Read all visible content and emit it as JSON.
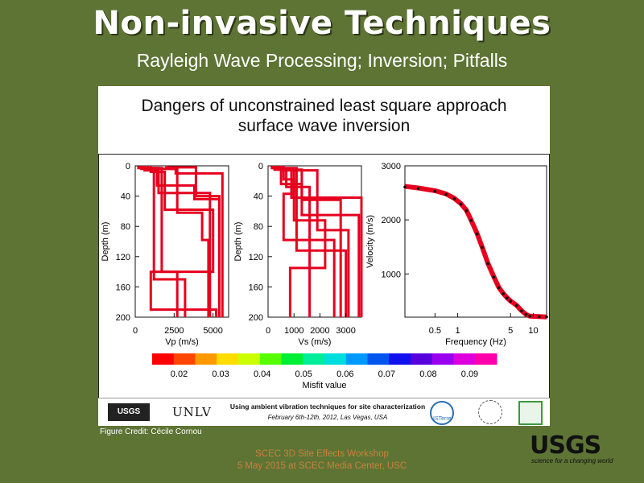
{
  "slide": {
    "title": "Non-invasive Techniques",
    "subtitle": "Rayleigh Wave Processing; Inversion; Pitfalls"
  },
  "panel": {
    "title_line1": "Dangers of unconstrained least square approach",
    "title_line2": "surface wave inversion"
  },
  "chart_data": [
    {
      "type": "line",
      "name": "vp-profile",
      "xlabel": "Vp (m/s)",
      "ylabel": "Depth (m)",
      "xlim": [
        0,
        6000
      ],
      "ylim": [
        200,
        0
      ],
      "xticks": [
        0,
        2500,
        5000
      ],
      "yticks": [
        0,
        40,
        80,
        120,
        160,
        200
      ],
      "series": [
        {
          "color": "#e6001e",
          "points": [
            [
              400,
              0
            ],
            [
              400,
              4
            ],
            [
              2600,
              4
            ],
            [
              2600,
              10
            ],
            [
              5600,
              10
            ],
            [
              5600,
              200
            ]
          ]
        },
        {
          "color": "#e6001e",
          "points": [
            [
              200,
              0
            ],
            [
              200,
              3
            ],
            [
              1500,
              3
            ],
            [
              1500,
              36
            ],
            [
              4800,
              36
            ],
            [
              4800,
              200
            ]
          ]
        },
        {
          "color": "#e6001e",
          "points": [
            [
              600,
              0
            ],
            [
              600,
              6
            ],
            [
              1400,
              6
            ],
            [
              1400,
              26
            ],
            [
              3800,
              26
            ],
            [
              3800,
              44
            ],
            [
              5400,
              44
            ],
            [
              5400,
              200
            ]
          ]
        },
        {
          "color": "#e6001e",
          "points": [
            [
              800,
              0
            ],
            [
              800,
              4
            ],
            [
              2700,
              4
            ],
            [
              2700,
              62
            ],
            [
              4300,
              62
            ],
            [
              4300,
              98
            ],
            [
              4700,
              98
            ],
            [
              4700,
              200
            ]
          ]
        },
        {
          "color": "#e6001e",
          "points": [
            [
              300,
              0
            ],
            [
              300,
              3
            ],
            [
              1700,
              3
            ],
            [
              1700,
              140
            ],
            [
              2700,
              140
            ],
            [
              2700,
              200
            ]
          ]
        },
        {
          "color": "#e6001e",
          "points": [
            [
              1000,
              0
            ],
            [
              1000,
              8
            ],
            [
              1900,
              8
            ],
            [
              1900,
              58
            ],
            [
              5000,
              58
            ],
            [
              5000,
              140
            ],
            [
              1000,
              140
            ],
            [
              1000,
              190
            ],
            [
              5200,
              190
            ],
            [
              5200,
              200
            ]
          ]
        },
        {
          "color": "#e6001e",
          "points": [
            [
              500,
              0
            ],
            [
              500,
              3
            ],
            [
              1200,
              3
            ],
            [
              1200,
              150
            ],
            [
              3200,
              150
            ],
            [
              3200,
              200
            ]
          ]
        },
        {
          "color": "#e6001e",
          "points": [
            [
              2000,
              0
            ],
            [
              2000,
              2
            ],
            [
              3900,
              2
            ],
            [
              3900,
              40
            ],
            [
              5400,
              40
            ],
            [
              5400,
              200
            ]
          ]
        }
      ]
    },
    {
      "type": "line",
      "name": "vs-profile",
      "xlabel": "Vs (m/s)",
      "ylabel": "Depth (m)",
      "xlim": [
        0,
        3600
      ],
      "ylim": [
        200,
        0
      ],
      "xticks": [
        0,
        1000,
        2000,
        3000
      ],
      "yticks": [
        0,
        40,
        80,
        120,
        160,
        200
      ],
      "series": [
        {
          "color": "#e6001e",
          "points": [
            [
              250,
              0
            ],
            [
              250,
              5
            ],
            [
              900,
              5
            ],
            [
              900,
              42
            ],
            [
              3600,
              42
            ],
            [
              3600,
              200
            ]
          ]
        },
        {
          "color": "#e6001e",
          "points": [
            [
              150,
              0
            ],
            [
              150,
              3
            ],
            [
              500,
              3
            ],
            [
              500,
              24
            ],
            [
              1300,
              24
            ],
            [
              1300,
              65
            ],
            [
              3500,
              65
            ],
            [
              3500,
              200
            ]
          ]
        },
        {
          "color": "#e6001e",
          "points": [
            [
              300,
              0
            ],
            [
              300,
              4
            ],
            [
              1000,
              4
            ],
            [
              1000,
              37
            ],
            [
              600,
              37
            ],
            [
              600,
              98
            ],
            [
              2550,
              98
            ],
            [
              2550,
              200
            ]
          ]
        },
        {
          "color": "#e6001e",
          "points": [
            [
              400,
              0
            ],
            [
              400,
              4
            ],
            [
              600,
              4
            ],
            [
              600,
              18
            ],
            [
              1000,
              18
            ],
            [
              1000,
              72
            ],
            [
              2200,
              72
            ],
            [
              2200,
              135
            ],
            [
              850,
              135
            ],
            [
              850,
              200
            ]
          ]
        },
        {
          "color": "#e6001e",
          "points": [
            [
              200,
              0
            ],
            [
              200,
              3
            ],
            [
              1100,
              3
            ],
            [
              1100,
              112
            ],
            [
              3000,
              112
            ],
            [
              3000,
              200
            ]
          ]
        },
        {
          "color": "#e6001e",
          "points": [
            [
              500,
              0
            ],
            [
              500,
              5
            ],
            [
              1300,
              5
            ],
            [
              1300,
              45
            ],
            [
              2800,
              45
            ],
            [
              2800,
              200
            ]
          ]
        },
        {
          "color": "#e6001e",
          "points": [
            [
              350,
              0
            ],
            [
              350,
              4
            ],
            [
              700,
              4
            ],
            [
              700,
              28
            ],
            [
              1600,
              28
            ],
            [
              1600,
              200
            ]
          ]
        },
        {
          "color": "#e6001e",
          "points": [
            [
              600,
              0
            ],
            [
              600,
              6
            ],
            [
              1900,
              6
            ],
            [
              1900,
              85
            ],
            [
              3100,
              85
            ],
            [
              3100,
              200
            ]
          ]
        }
      ]
    },
    {
      "type": "scatter",
      "name": "dispersion-curve",
      "xlabel": "Frequency (Hz)",
      "ylabel": "Velocity (m/s)",
      "xscale": "log",
      "xlim": [
        0.2,
        15
      ],
      "ylim": [
        200,
        3000
      ],
      "xticks": [
        0.5,
        1,
        5,
        10
      ],
      "yticks": [
        1000,
        2000,
        3000
      ],
      "series": [
        {
          "color": "#e6001e",
          "style": "band",
          "points": [
            [
              0.2,
              2620
            ],
            [
              0.3,
              2590
            ],
            [
              0.5,
              2540
            ],
            [
              0.7,
              2480
            ],
            [
              0.9,
              2400
            ],
            [
              1.1,
              2300
            ],
            [
              1.3,
              2180
            ],
            [
              1.5,
              2000
            ],
            [
              1.8,
              1750
            ],
            [
              2.1,
              1500
            ],
            [
              2.5,
              1200
            ],
            [
              3.0,
              950
            ],
            [
              3.5,
              750
            ],
            [
              4.0,
              640
            ],
            [
              4.5,
              560
            ],
            [
              5.0,
              500
            ],
            [
              6.0,
              420
            ],
            [
              7.0,
              320
            ],
            [
              8.0,
              250
            ],
            [
              9.0,
              220
            ],
            [
              12.0,
              210
            ],
            [
              15.0,
              205
            ]
          ]
        },
        {
          "color": "#111111",
          "style": "dots",
          "points": [
            [
              0.2,
              2610
            ],
            [
              0.3,
              2580
            ],
            [
              0.5,
              2530
            ],
            [
              0.7,
              2470
            ],
            [
              0.9,
              2390
            ],
            [
              1.1,
              2290
            ],
            [
              1.3,
              2170
            ],
            [
              1.5,
              1990
            ],
            [
              1.8,
              1740
            ],
            [
              2.1,
              1490
            ],
            [
              2.5,
              1190
            ],
            [
              3.0,
              940
            ],
            [
              3.5,
              745
            ],
            [
              4.0,
              635
            ],
            [
              4.5,
              555
            ],
            [
              5.0,
              495
            ],
            [
              6.0,
              415
            ],
            [
              7.0,
              315
            ],
            [
              8.0,
              248
            ],
            [
              9.0,
              218
            ],
            [
              12.0,
              208
            ],
            [
              15.0,
              205
            ]
          ]
        }
      ]
    },
    {
      "type": "colorbar",
      "name": "misfit-colorbar",
      "label": "Misfit value",
      "colors": [
        "#ff0000",
        "#ff4500",
        "#ff9900",
        "#ffdd00",
        "#ccff00",
        "#55ff00",
        "#00ee33",
        "#00ee99",
        "#00dddd",
        "#0099ff",
        "#0055ee",
        "#1111ee",
        "#5500dd",
        "#9900ee",
        "#dd00dd",
        "#ff00aa"
      ],
      "ticks": [
        "0.02",
        "0.03",
        "0.04",
        "0.05",
        "0.06",
        "0.07",
        "0.08",
        "0.09"
      ]
    }
  ],
  "footer": {
    "usgs_small": "USGS",
    "unlv": "UNLV",
    "workshop_title": "Using ambient vibration techniques for site characterization",
    "workshop_date": "February 6th-12th, 2012, Las Vegas, USA",
    "isterre": "ISTerre"
  },
  "credit": "Figure Credit: Cécile Cornou",
  "bottom": {
    "line1": "SCEC 3D Site Effects Workshop",
    "line2": "5 May 2015 at SCEC Media Center, USC"
  },
  "usgs_logo": {
    "mark": "USGS",
    "tagline": "science for a changing world"
  }
}
